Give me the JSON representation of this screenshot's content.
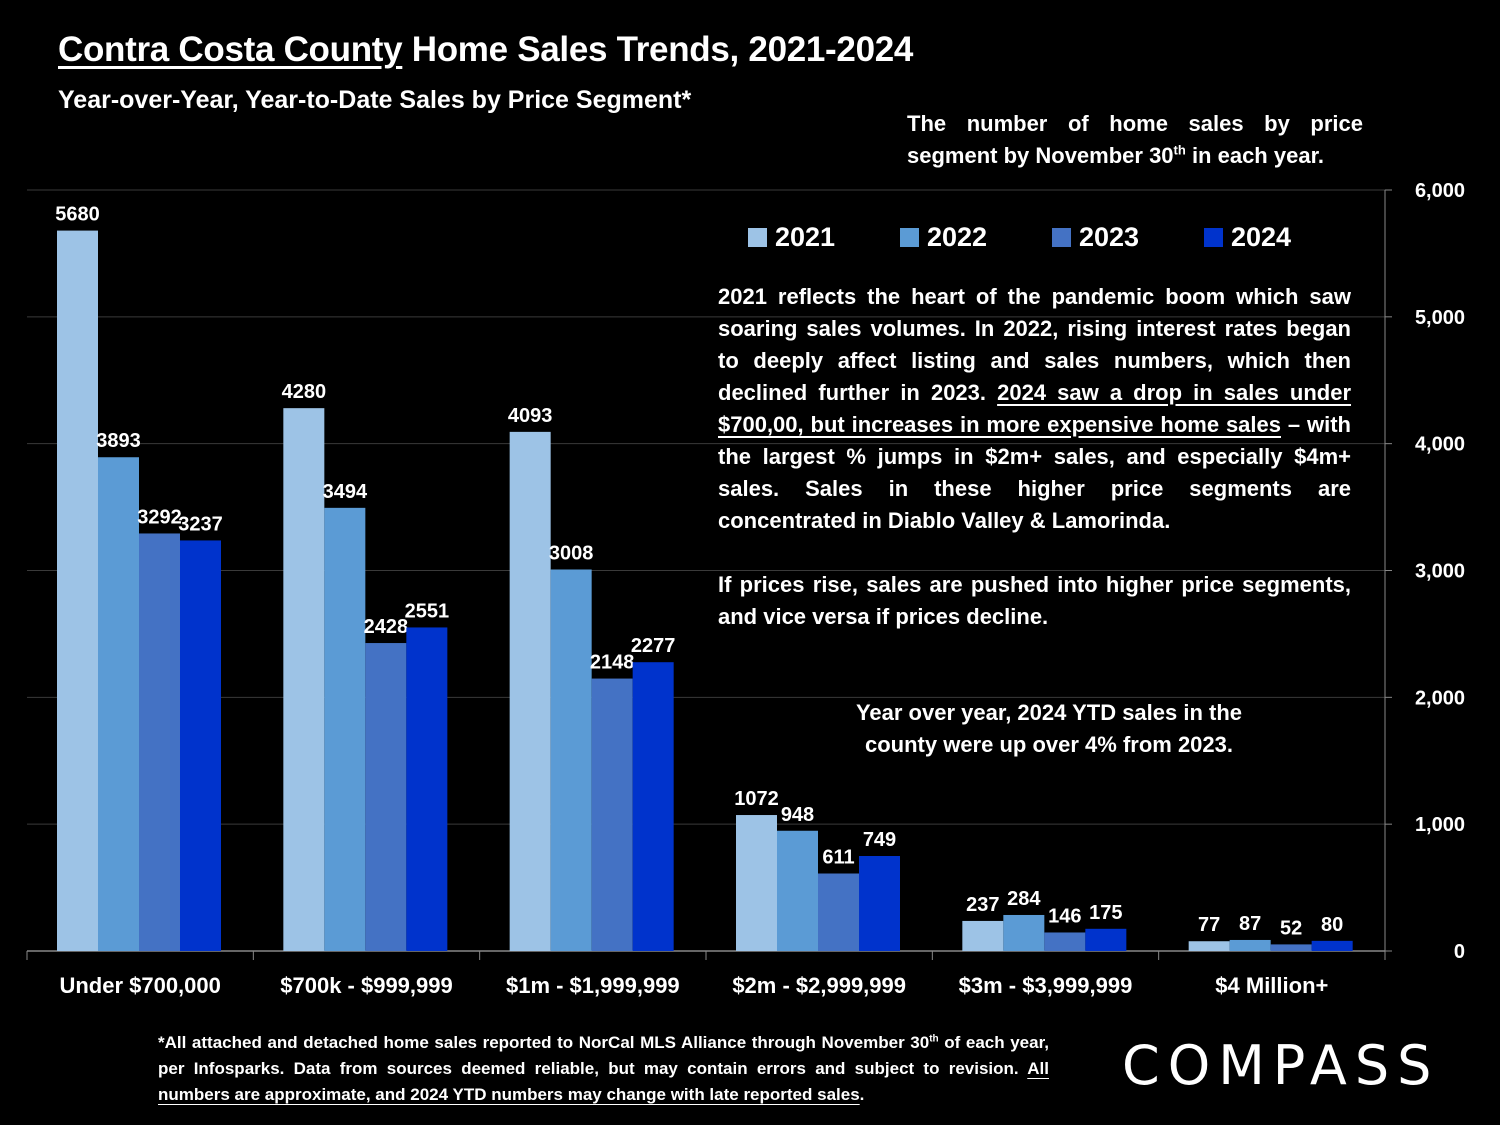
{
  "header": {
    "title_underlined": "Contra Costa County",
    "title_rest": " Home Sales Trends, 2021-2024",
    "subtitle": "Year-over-Year, Year-to-Date Sales by Price Segment*"
  },
  "notes": {
    "top_a": "The number of home sales by price segment by November 30",
    "top_sup": "th",
    "top_b": " in each year.",
    "main_a": "2021 reflects the heart of the pandemic boom which saw soaring sales volumes. In 2022, rising interest rates began to deeply affect listing and sales numbers, which then declined further in 2023. ",
    "main_underlined": "2024 saw a drop in sales under $700,00, but increases in more expensive home sales",
    "main_b": " – with the largest % jumps in $2m+ sales, and especially $4m+ sales. Sales in these higher price segments are concentrated in Diablo Valley & Lamorinda.",
    "main_p2": "If prices rise, sales are pushed into higher price segments, and vice versa if prices decline.",
    "yoy": "Year over year, 2024 YTD sales in the county were up over 4% from 2023."
  },
  "footnote": {
    "a": "*All attached and detached home sales reported to NorCal MLS Alliance through November 30",
    "sup": "th",
    "b": " of each year, per Infosparks. Data from sources deemed reliable, but may contain errors and subject to revision. ",
    "underlined": "All numbers are approximate, and 2024 YTD numbers may change with late reported sales",
    "c": "."
  },
  "brand": {
    "logo_text": "COMPASS"
  },
  "chart_data": {
    "type": "bar",
    "categories": [
      "Under $700,000",
      "$700k - $999,999",
      "$1m - $1,999,999",
      "$2m - $2,999,999",
      "$3m - $3,999,999",
      "$4 Million+"
    ],
    "series": [
      {
        "name": "2021",
        "color": "#9dc3e6",
        "values": [
          5680,
          4280,
          4093,
          1072,
          237,
          77
        ]
      },
      {
        "name": "2022",
        "color": "#5b9bd5",
        "values": [
          3893,
          3494,
          3008,
          948,
          284,
          87
        ]
      },
      {
        "name": "2023",
        "color": "#4472c4",
        "values": [
          3292,
          2428,
          2148,
          611,
          146,
          52
        ]
      },
      {
        "name": "2024",
        "color": "#0033cc",
        "values": [
          3237,
          2551,
          2277,
          749,
          175,
          80
        ]
      }
    ],
    "ylim": [
      0,
      6000
    ],
    "yticks": [
      "0",
      "1,000",
      "2,000",
      "3,000",
      "4,000",
      "5,000",
      "6,000"
    ],
    "y_axis_side": "right",
    "grid": true,
    "legend_position": "top-right",
    "data_labels": true
  }
}
